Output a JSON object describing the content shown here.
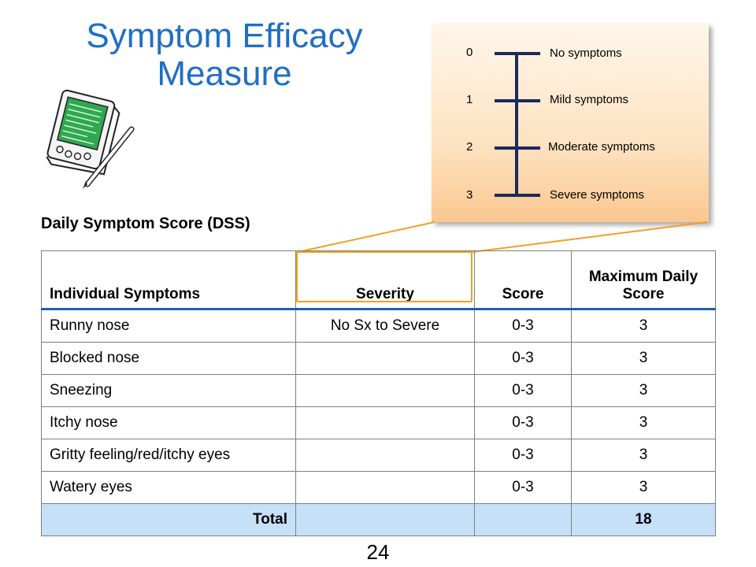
{
  "title": "Symptom Efficacy Measure",
  "subtitle": "Daily Symptom Score (DSS)",
  "icons": {
    "pda": "pda-stylus-icon"
  },
  "colors": {
    "title": "#1f6fc4",
    "callout_border": "#f0a020",
    "total_row": "#c6e0f8",
    "scale_line": "#1b2a5c"
  },
  "scale": {
    "levels": [
      {
        "value": "0",
        "label": "No symptoms"
      },
      {
        "value": "1",
        "label": "Mild symptoms"
      },
      {
        "value": "2",
        "label": "Moderate symptoms"
      },
      {
        "value": "3",
        "label": "Severe symptoms"
      }
    ]
  },
  "table": {
    "headers": [
      "Individual Symptoms",
      "Severity",
      "Score",
      "Maximum Daily Score"
    ],
    "rows": [
      {
        "symptom": "Runny nose",
        "severity": "No Sx to Severe",
        "score": "0-3",
        "max": "3"
      },
      {
        "symptom": "Blocked nose",
        "severity": "",
        "score": "0-3",
        "max": "3"
      },
      {
        "symptom": "Sneezing",
        "severity": "",
        "score": "0-3",
        "max": "3"
      },
      {
        "symptom": "Itchy nose",
        "severity": "",
        "score": "0-3",
        "max": "3"
      },
      {
        "symptom": "Gritty feeling/red/itchy eyes",
        "severity": "",
        "score": "0-3",
        "max": "3"
      },
      {
        "symptom": "Watery eyes",
        "severity": "",
        "score": "0-3",
        "max": "3"
      }
    ],
    "total": {
      "label": "Total",
      "severity": "",
      "score": "",
      "max": "18"
    }
  },
  "page_number": "24"
}
